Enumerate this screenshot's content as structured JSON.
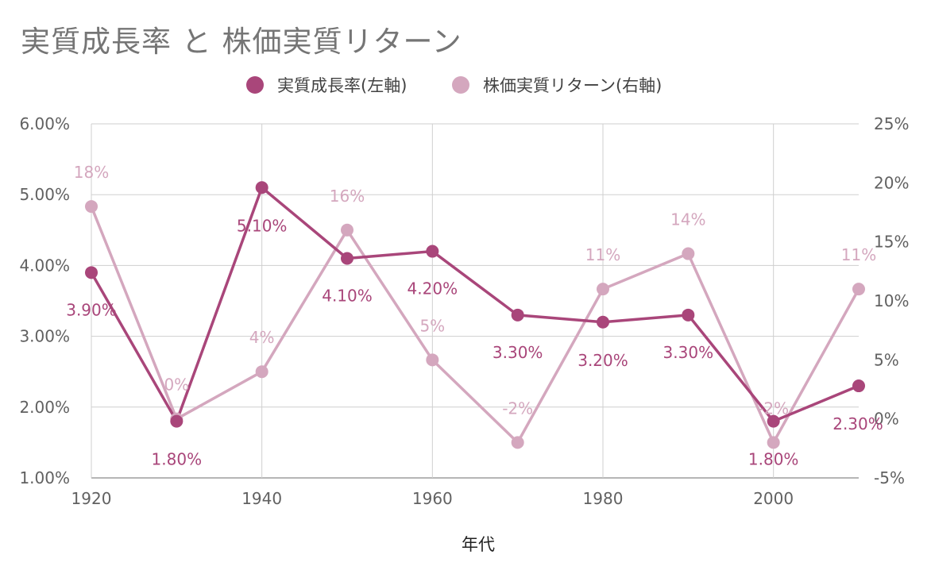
{
  "chart_data": {
    "type": "line",
    "title": "実質成長率 と 株価実質リターン",
    "xlabel": "年代",
    "x": [
      1920,
      1930,
      1940,
      1950,
      1960,
      1970,
      1980,
      1990,
      2000,
      2010
    ],
    "x_ticks": [
      "1920",
      "1940",
      "1960",
      "1980",
      "2000"
    ],
    "y_left": {
      "range": [
        1,
        6
      ],
      "ticks": [
        "1.00%",
        "2.00%",
        "3.00%",
        "4.00%",
        "5.00%",
        "6.00%"
      ]
    },
    "y_right": {
      "range": [
        -5,
        25
      ],
      "ticks": [
        "-5%",
        "0%",
        "5%",
        "10%",
        "15%",
        "20%",
        "25%"
      ]
    },
    "grid": true,
    "legend_position": "top",
    "series": [
      {
        "name": "実質成長率(左軸)",
        "axis": "left",
        "color": "#a9467a",
        "values": [
          3.9,
          1.8,
          5.1,
          4.1,
          4.2,
          3.3,
          3.2,
          3.3,
          1.8,
          2.3
        ],
        "labels": [
          "3.90%",
          "1.80%",
          "5.10%",
          "4.10%",
          "4.20%",
          "3.30%",
          "3.20%",
          "3.30%",
          "1.80%",
          "2.30%"
        ]
      },
      {
        "name": "株価実質リターン(右軸)",
        "axis": "right",
        "color": "#d4a7be",
        "values": [
          18,
          0,
          4,
          16,
          5,
          -2,
          11,
          14,
          -2,
          11
        ],
        "labels": [
          "18%",
          "0%",
          "4%",
          "16%",
          "5%",
          "-2%",
          "11%",
          "14%",
          "-2%",
          "11%"
        ]
      }
    ]
  }
}
